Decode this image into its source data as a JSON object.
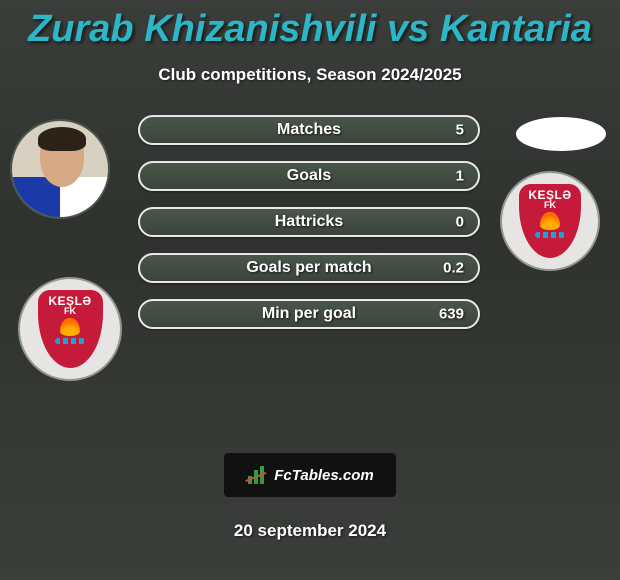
{
  "colors": {
    "title": "#2bb7c7",
    "pill_border": "#e8e8e8",
    "pill_bg_top": "#4a564a",
    "pill_bg_bottom": "#3b443b",
    "club_shield": "#c51a3a",
    "brand_bg": "#111111"
  },
  "title": "Zurab Khizanishvili vs Kantaria",
  "subtitle": "Club competitions, Season 2024/2025",
  "club": {
    "name": "KEŞLƏ",
    "sub": "FK"
  },
  "stats": [
    {
      "label": "Matches",
      "value": "5"
    },
    {
      "label": "Goals",
      "value": "1"
    },
    {
      "label": "Hattricks",
      "value": "0"
    },
    {
      "label": "Goals per match",
      "value": "0.2"
    },
    {
      "label": "Min per goal",
      "value": "639"
    }
  ],
  "brand": "FcTables.com",
  "date": "20 september 2024",
  "typography": {
    "title_fontsize": 38,
    "subtitle_fontsize": 17,
    "pill_label_fontsize": 16,
    "pill_value_fontsize": 15,
    "date_fontsize": 17
  }
}
